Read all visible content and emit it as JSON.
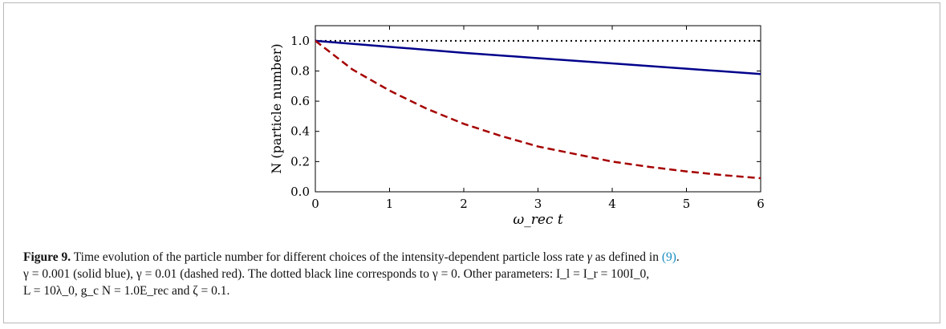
{
  "chart_data": {
    "type": "line",
    "title": "",
    "xlabel": "ω_rec t",
    "ylabel": "N (particle number)",
    "xlim": [
      0,
      6
    ],
    "ylim": [
      0.0,
      1.1
    ],
    "xticks": [
      "0",
      "1",
      "2",
      "3",
      "4",
      "5",
      "6"
    ],
    "yticks": [
      "0.0",
      "0.2",
      "0.4",
      "0.6",
      "0.8",
      "1.0"
    ],
    "grid": false,
    "legend": "none",
    "series": [
      {
        "style": "dotted",
        "color": "#000000",
        "x": [
          0,
          1,
          2,
          3,
          4,
          5,
          6
        ],
        "y": [
          1.0,
          1.0,
          1.0,
          1.0,
          1.0,
          1.0,
          1.0
        ]
      },
      {
        "style": "solid",
        "color": "#00008b",
        "x": [
          0,
          1,
          2,
          3,
          4,
          5,
          6
        ],
        "y": [
          1.0,
          0.96,
          0.92,
          0.885,
          0.85,
          0.815,
          0.78
        ]
      },
      {
        "style": "dashed",
        "color": "#a50000",
        "x": [
          0,
          0.5,
          1,
          1.5,
          2,
          2.5,
          3,
          3.5,
          4,
          4.5,
          5,
          5.5,
          6
        ],
        "y": [
          1.0,
          0.81,
          0.67,
          0.55,
          0.45,
          0.37,
          0.3,
          0.25,
          0.2,
          0.165,
          0.135,
          0.11,
          0.09
        ]
      }
    ]
  },
  "caption": {
    "label": "Figure 9.",
    "text_1": "Time evolution of the particle number for different choices of the intensity-dependent particle loss rate",
    "gamma": "γ",
    "text_2": "as defined in",
    "ref": "(9)",
    "text_3": ".",
    "line2": "γ = 0.001 (solid blue), γ = 0.01 (dashed red). The dotted black line corresponds to γ = 0. Other parameters: I_l = I_r = 100I_0,",
    "line3": "L = 10λ_0, g_c N = 1.0E_rec and ζ = 0.1."
  }
}
